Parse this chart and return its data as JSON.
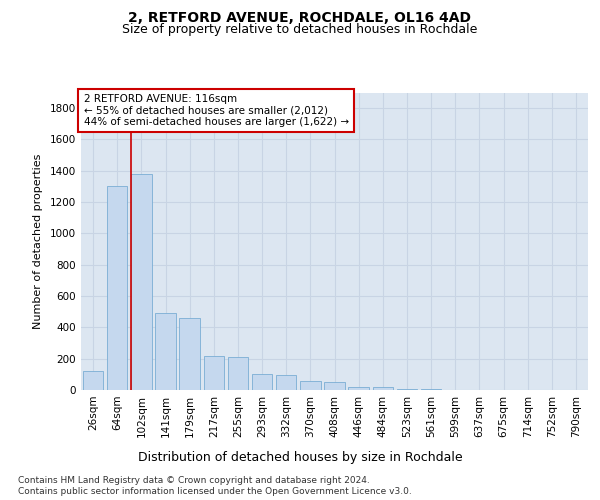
{
  "title_line1": "2, RETFORD AVENUE, ROCHDALE, OL16 4AD",
  "title_line2": "Size of property relative to detached houses in Rochdale",
  "xlabel": "Distribution of detached houses by size in Rochdale",
  "ylabel": "Number of detached properties",
  "bin_labels": [
    "26sqm",
    "64sqm",
    "102sqm",
    "141sqm",
    "179sqm",
    "217sqm",
    "255sqm",
    "293sqm",
    "332sqm",
    "370sqm",
    "408sqm",
    "446sqm",
    "484sqm",
    "523sqm",
    "561sqm",
    "599sqm",
    "637sqm",
    "675sqm",
    "714sqm",
    "752sqm",
    "790sqm"
  ],
  "bar_heights": [
    120,
    1300,
    1380,
    490,
    460,
    220,
    210,
    100,
    95,
    55,
    50,
    20,
    17,
    5,
    5,
    0,
    0,
    0,
    0,
    0,
    0
  ],
  "bar_color": "#c5d8ee",
  "bar_edge_color": "#7aadd4",
  "vline_bin": 2,
  "annotation_text": "2 RETFORD AVENUE: 116sqm\n← 55% of detached houses are smaller (2,012)\n44% of semi-detached houses are larger (1,622) →",
  "annotation_box_color": "#ffffff",
  "annotation_border_color": "#cc0000",
  "footnote_line1": "Contains HM Land Registry data © Crown copyright and database right 2024.",
  "footnote_line2": "Contains public sector information licensed under the Open Government Licence v3.0.",
  "ylim": [
    0,
    1900
  ],
  "yticks": [
    0,
    200,
    400,
    600,
    800,
    1000,
    1200,
    1400,
    1600,
    1800
  ],
  "grid_color": "#c8d4e4",
  "bg_color": "#dce6f1",
  "title1_fontsize": 10,
  "title2_fontsize": 9,
  "ylabel_fontsize": 8,
  "xlabel_fontsize": 9,
  "tick_fontsize": 7.5,
  "annot_fontsize": 7.5,
  "footnote_fontsize": 6.5
}
